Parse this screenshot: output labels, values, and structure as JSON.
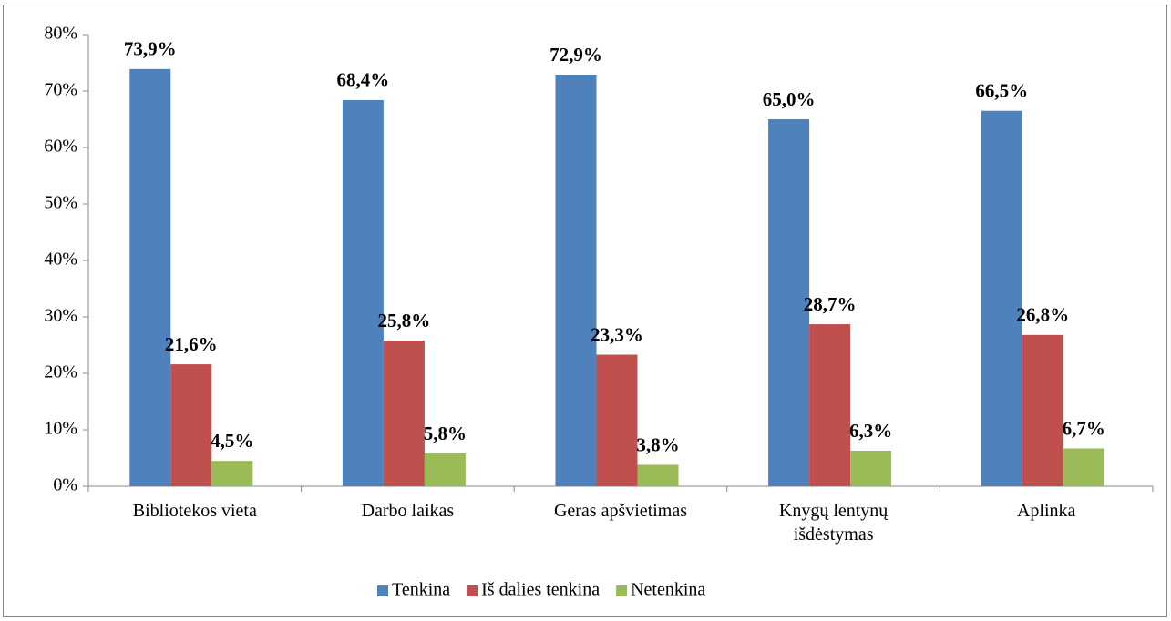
{
  "chart_data": {
    "type": "bar",
    "categories": [
      "Bibliotekos vieta",
      "Darbo laikas",
      "Geras apšvietimas",
      "Knygų lentynų išdėstymas",
      "Aplinka"
    ],
    "series": [
      {
        "name": "Tenkina",
        "color": "#4f81bd",
        "values": [
          73.9,
          68.4,
          72.9,
          65.0,
          66.5
        ],
        "value_labels": [
          "73,9%",
          "68,4%",
          "72,9%",
          "65,0%",
          "66,5%"
        ]
      },
      {
        "name": "Iš dalies tenkina",
        "color": "#c0504d",
        "values": [
          21.6,
          25.8,
          23.3,
          28.7,
          26.8
        ],
        "value_labels": [
          "21,6%",
          "25,8%",
          "23,3%",
          "28,7%",
          "26,8%"
        ]
      },
      {
        "name": "Netenkina",
        "color": "#9bbb59",
        "values": [
          4.5,
          5.8,
          3.8,
          6.3,
          6.7
        ],
        "value_labels": [
          "4,5%",
          "5,8%",
          "3,8%",
          "6,3%",
          "6,7%"
        ]
      }
    ],
    "ylim": [
      0,
      80
    ],
    "yticks": [
      {
        "value": 0,
        "label": "0%"
      },
      {
        "value": 10,
        "label": "10%"
      },
      {
        "value": 20,
        "label": "20%"
      },
      {
        "value": 30,
        "label": "30%"
      },
      {
        "value": 40,
        "label": "40%"
      },
      {
        "value": 50,
        "label": "50%"
      },
      {
        "value": 60,
        "label": "60%"
      },
      {
        "value": 70,
        "label": "70%"
      },
      {
        "value": 80,
        "label": "80%"
      }
    ],
    "grid": false,
    "legend": "bottom"
  }
}
